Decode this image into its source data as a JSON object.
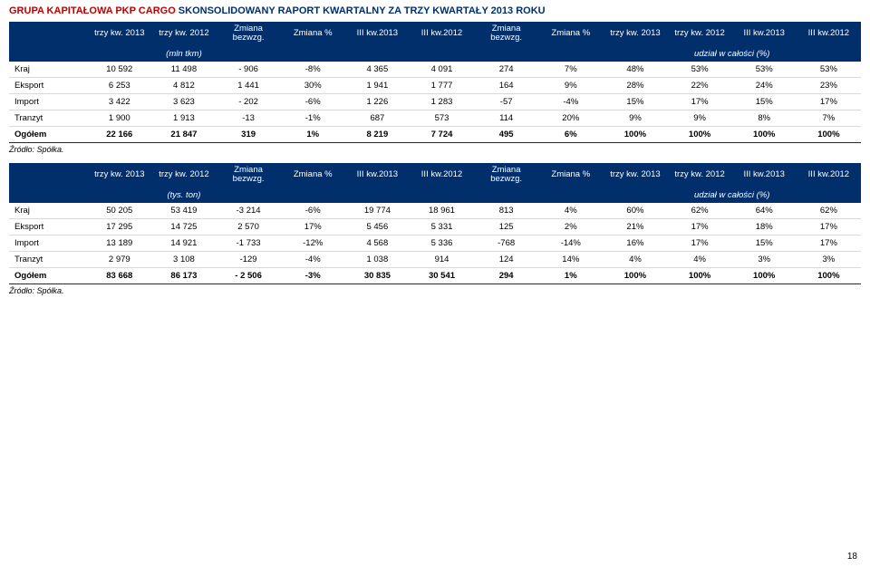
{
  "header": {
    "company": "GRUPA KAPITAŁOWA PKP CARGO",
    "report": " SKONSOLIDOWANY RAPORT KWARTALNY ZA TRZY KWARTAŁY 2013 ROKU"
  },
  "source_label": "Źródło: Spółka.",
  "page_number": "18",
  "columns": [
    "",
    "trzy kw. 2013",
    "trzy kw. 2012",
    "Zmiana bezwzg.",
    "Zmiana %",
    "III kw.2013",
    "III kw.2012",
    "Zmiana bezwzg.",
    "Zmiana %",
    "trzy kw. 2013",
    "trzy kw. 2012",
    "III kw.2013",
    "III kw.2012"
  ],
  "table1": {
    "unit_left": "(mln tkm)",
    "unit_right": "udział w całości (%)",
    "rows": [
      {
        "label": "Kraj",
        "vals": [
          "10 592",
          "11 498",
          "- 906",
          "-8%",
          "4 365",
          "4 091",
          "274",
          "7%",
          "48%",
          "53%",
          "53%",
          "53%"
        ],
        "total": false
      },
      {
        "label": "Eksport",
        "vals": [
          "6 253",
          "4 812",
          "1 441",
          "30%",
          "1 941",
          "1 777",
          "164",
          "9%",
          "28%",
          "22%",
          "24%",
          "23%"
        ],
        "total": false
      },
      {
        "label": "Import",
        "vals": [
          "3 422",
          "3 623",
          "- 202",
          "-6%",
          "1 226",
          "1 283",
          "-57",
          "-4%",
          "15%",
          "17%",
          "15%",
          "17%"
        ],
        "total": false
      },
      {
        "label": "Tranzyt",
        "vals": [
          "1 900",
          "1 913",
          "-13",
          "-1%",
          "687",
          "573",
          "114",
          "20%",
          "9%",
          "9%",
          "8%",
          "7%"
        ],
        "total": false
      },
      {
        "label": "Ogółem",
        "vals": [
          "22 166",
          "21 847",
          "319",
          "1%",
          "8 219",
          "7 724",
          "495",
          "6%",
          "100%",
          "100%",
          "100%",
          "100%"
        ],
        "total": true
      }
    ]
  },
  "table2": {
    "unit_left": "(tys. ton)",
    "unit_right": "udział w całości (%)",
    "rows": [
      {
        "label": "Kraj",
        "vals": [
          "50 205",
          "53 419",
          "-3 214",
          "-6%",
          "19 774",
          "18 961",
          "813",
          "4%",
          "60%",
          "62%",
          "64%",
          "62%"
        ],
        "total": false
      },
      {
        "label": "Eksport",
        "vals": [
          "17 295",
          "14 725",
          "2 570",
          "17%",
          "5 456",
          "5 331",
          "125",
          "2%",
          "21%",
          "17%",
          "18%",
          "17%"
        ],
        "total": false
      },
      {
        "label": "Import",
        "vals": [
          "13 189",
          "14 921",
          "-1 733",
          "-12%",
          "4 568",
          "5 336",
          "-768",
          "-14%",
          "16%",
          "17%",
          "15%",
          "17%"
        ],
        "total": false
      },
      {
        "label": "Tranzyt",
        "vals": [
          "2 979",
          "3 108",
          "-129",
          "-4%",
          "1 038",
          "914",
          "124",
          "14%",
          "4%",
          "4%",
          "3%",
          "3%"
        ],
        "total": false
      },
      {
        "label": "Ogółem",
        "vals": [
          "83 668",
          "86 173",
          "- 2 506",
          "-3%",
          "30 835",
          "30 541",
          "294",
          "1%",
          "100%",
          "100%",
          "100%",
          "100%"
        ],
        "total": true
      }
    ]
  },
  "style": {
    "header_bg": "#002f6c",
    "header_color": "#ffffff",
    "row_border": "#d9d9d9",
    "total_border": "#002f6c",
    "red": "#c00000",
    "blue": "#002f6c",
    "font_size_body": 9.5,
    "font_size_header": 11
  }
}
